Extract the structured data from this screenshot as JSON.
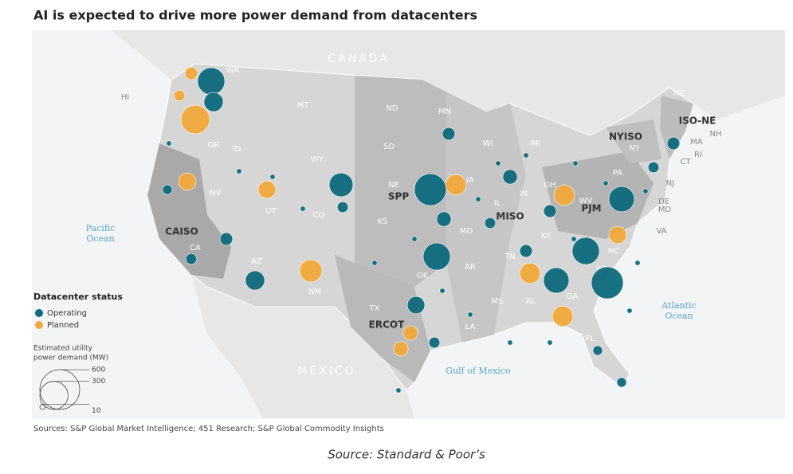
{
  "title": "AI is expected to drive more power demand from datacenters",
  "place_labels": [
    "CANADA",
    "MEXICO",
    "Pacific",
    "Ocean",
    "Atlantic",
    "Ocean",
    "Gulf of Mexico",
    "HI",
    "WA",
    "OR",
    "ID",
    "MT",
    "ND",
    "SD",
    "MN",
    "WI",
    "MI",
    "WY",
    "NE",
    "IA",
    "IL",
    "IN",
    "OH",
    "PA",
    "NY",
    "NV",
    "UT",
    "CO",
    "KS",
    "MO",
    "KY",
    "WV",
    "VA",
    "CA",
    "AZ",
    "NM",
    "OK",
    "AR",
    "TN",
    "NC",
    "SC",
    "GA",
    "AL",
    "MS",
    "LA",
    "TX",
    "FL",
    "ME",
    "NH",
    "MA",
    "RI",
    "CT",
    "NJ",
    "DE",
    "MD",
    "CAISO",
    "SPP",
    "MISO",
    "PJM",
    "ERCOT",
    "NYISO",
    "ISO-NE"
  ],
  "legend": {
    "status_title": "Datacenter status",
    "statuses": [
      {
        "name": "Operating",
        "color": "#0e6a7e"
      },
      {
        "name": "Planned",
        "color": "#f2a93b"
      }
    ],
    "size_title": [
      "Estimated utility",
      "power demand (MW)"
    ],
    "sizes": [
      600,
      300,
      10
    ]
  },
  "datacenters": [
    {
      "status": 0,
      "mw": 280
    },
    {
      "status": 1,
      "mw": 60
    },
    {
      "status": 0,
      "mw": 140
    },
    {
      "status": 1,
      "mw": 310
    },
    {
      "status": 1,
      "mw": 45
    },
    {
      "status": 0,
      "mw": 215
    },
    {
      "status": 0,
      "mw": 385
    },
    {
      "status": 1,
      "mw": 160
    },
    {
      "status": 1,
      "mw": 115
    },
    {
      "status": 1,
      "mw": 115
    },
    {
      "status": 1,
      "mw": 190
    },
    {
      "status": 0,
      "mw": 140
    },
    {
      "status": 0,
      "mw": 280
    },
    {
      "status": 0,
      "mw": 115
    },
    {
      "status": 1,
      "mw": 80
    },
    {
      "status": 1,
      "mw": 80
    },
    {
      "status": 0,
      "mw": 385
    },
    {
      "status": 0,
      "mw": 280
    },
    {
      "status": 0,
      "mw": 245
    },
    {
      "status": 1,
      "mw": 160
    },
    {
      "status": 1,
      "mw": 160
    },
    {
      "status": 1,
      "mw": 160
    },
    {
      "status": 0,
      "mw": 245
    },
    {
      "status": 1,
      "mw": 115
    },
    {
      "status": 0,
      "mw": 60
    },
    {
      "status": 0,
      "mw": 60
    },
    {
      "status": 0,
      "mw": 35
    },
    {
      "status": 0,
      "mw": 80
    },
    {
      "status": 0,
      "mw": 60
    },
    {
      "status": 0,
      "mw": 60
    },
    {
      "status": 0,
      "mw": 45
    },
    {
      "status": 0,
      "mw": 80
    },
    {
      "status": 0,
      "mw": 45
    },
    {
      "status": 0,
      "mw": 35
    },
    {
      "status": 0,
      "mw": 35
    },
    {
      "status": 0,
      "mw": 45
    },
    {
      "status": 0,
      "mw": 45
    },
    {
      "status": 0,
      "mw": 60
    },
    {
      "status": 0,
      "mw": 45
    },
    {
      "status": 0,
      "mw": 10
    },
    {
      "status": 0,
      "mw": 10
    },
    {
      "status": 0,
      "mw": 10
    },
    {
      "status": 0,
      "mw": 10
    },
    {
      "status": 0,
      "mw": 10
    },
    {
      "status": 0,
      "mw": 10
    },
    {
      "status": 0,
      "mw": 10
    },
    {
      "status": 0,
      "mw": 10
    },
    {
      "status": 0,
      "mw": 10
    },
    {
      "status": 0,
      "mw": 10
    },
    {
      "status": 0,
      "mw": 10
    },
    {
      "status": 0,
      "mw": 10
    },
    {
      "status": 0,
      "mw": 10
    },
    {
      "status": 0,
      "mw": 10
    },
    {
      "status": 0,
      "mw": 10
    },
    {
      "status": 0,
      "mw": 10
    },
    {
      "status": 0,
      "mw": 10
    },
    {
      "status": 0,
      "mw": 10
    },
    {
      "status": 0,
      "mw": 10
    },
    {
      "status": 0,
      "mw": 10
    }
  ],
  "sources": "Sources: S&P Global Market Intelligence; 451 Research; S&P Global Commodity Insights",
  "caption": "Source: Standard & Poor’s"
}
